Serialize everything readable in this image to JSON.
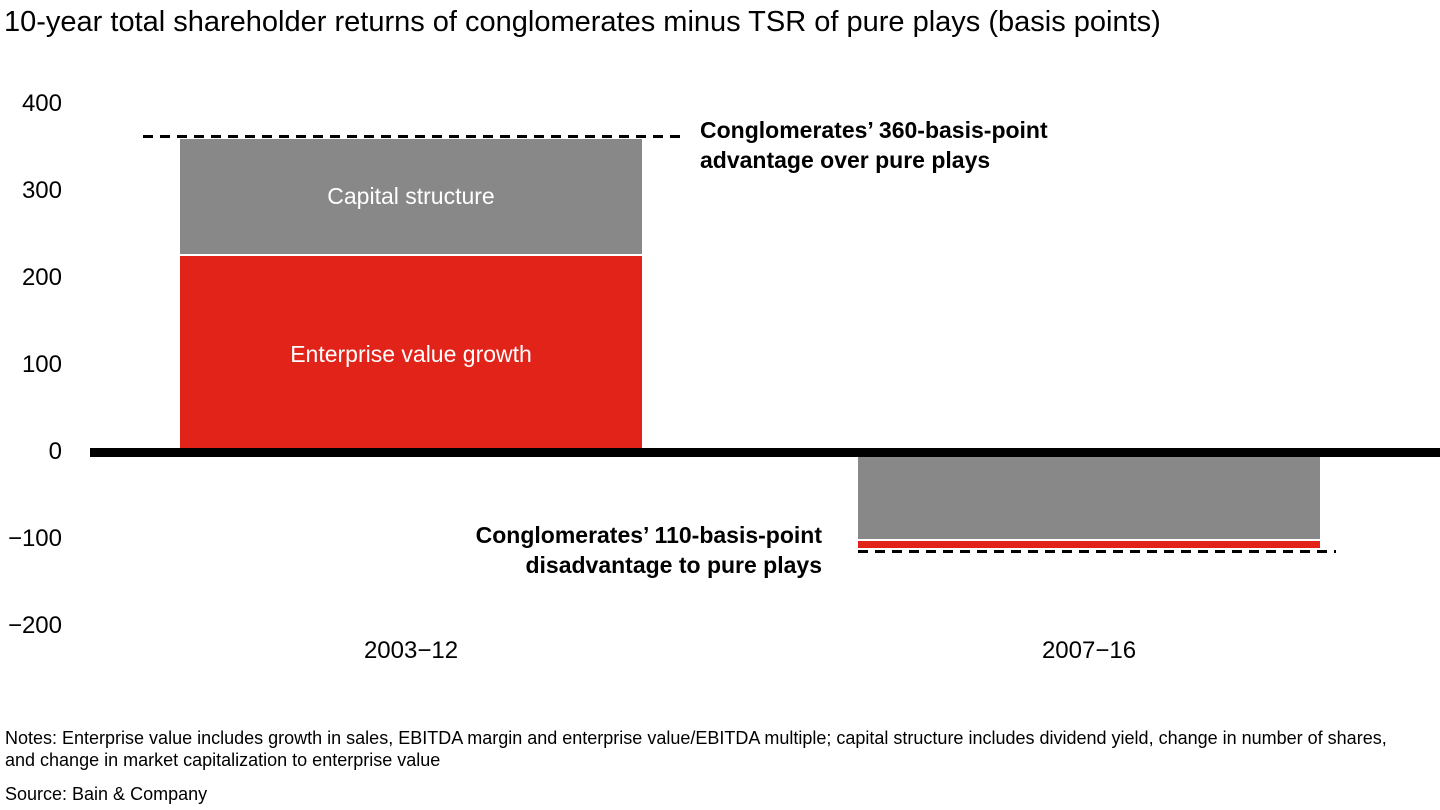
{
  "title": "10-year total shareholder returns of conglomerates minus TSR of pure plays (basis points)",
  "chart_data": {
    "type": "bar",
    "stacked": true,
    "unit": "basis points",
    "title": "10-year total shareholder returns of conglomerates minus TSR of pure plays (basis points)",
    "xlabel": "",
    "ylabel": "",
    "ylim": [
      -200,
      400
    ],
    "grid": false,
    "ytick_labels": [
      "400",
      "300",
      "200",
      "100",
      "0",
      "−100",
      "−200"
    ],
    "ytick_values": [
      400,
      300,
      200,
      100,
      0,
      -100,
      -200
    ],
    "categories": [
      "2003−12",
      "2007−16"
    ],
    "colors": {
      "enterprise_value_growth": "#e2231a",
      "capital_structure": "#888888",
      "axis": "#000000"
    },
    "bars": [
      {
        "category": "2003−12",
        "total": 360,
        "segments": [
          {
            "name": "Enterprise value growth",
            "value": 225,
            "color": "#e2231a",
            "label": "Enterprise value growth"
          },
          {
            "name": "Capital structure",
            "value": 135,
            "color": "#888888",
            "label": "Capital structure"
          }
        ]
      },
      {
        "category": "2007−16",
        "total": -110,
        "segments": [
          {
            "name": "Capital structure",
            "value": -100,
            "color": "#888888",
            "label": ""
          },
          {
            "name": "Enterprise value growth",
            "value": -10,
            "color": "#e2231a",
            "label": ""
          }
        ]
      }
    ],
    "annotations": [
      {
        "id": "advantage",
        "lines": [
          "Conglomerates’ 360-basis-point",
          "advantage over pure plays"
        ]
      },
      {
        "id": "disadvantage",
        "lines": [
          "Conglomerates’ 110-basis-point",
          "disadvantage to pure plays"
        ]
      }
    ]
  },
  "notes": "Notes: Enterprise value includes growth in sales, EBITDA margin and enterprise value/EBITDA multiple; capital structure includes dividend yield, change in number of shares, and change in market capitalization to enterprise value",
  "source": "Source: Bain & Company"
}
